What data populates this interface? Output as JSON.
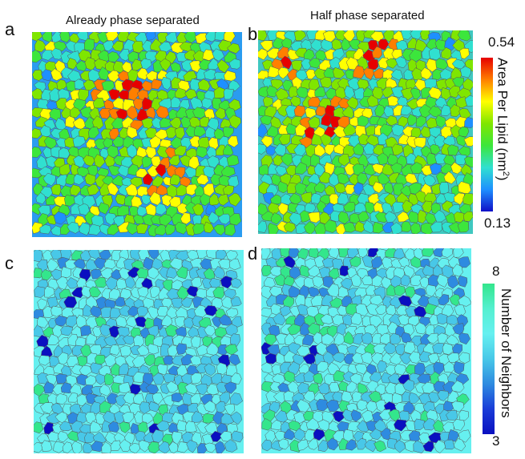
{
  "panels": [
    {
      "letter": "a",
      "title": "Already phase separated",
      "colormap": "area",
      "background": "#2a9cf0"
    },
    {
      "letter": "b",
      "title": "Half phase separated",
      "colormap": "area",
      "background": "#3fc8c0"
    },
    {
      "letter": "c",
      "title": "",
      "colormap": "neighbors",
      "background": "#66f0f0"
    },
    {
      "letter": "d",
      "title": "",
      "colormap": "neighbors",
      "background": "#66f0f0"
    }
  ],
  "colorbars": {
    "area": {
      "label_main": "Area Per Lipid (nm",
      "label_sup": "2",
      "label_end": ")",
      "max": "0.54",
      "min": "0.13",
      "gradient": [
        "#e60000",
        "#ff7f00",
        "#ffff00",
        "#7fe600",
        "#3ce63c",
        "#30e0d0",
        "#1e90ff",
        "#1010c8"
      ]
    },
    "neighbors": {
      "label": "Number of Neighbors",
      "max": "8",
      "min": "3",
      "gradient": [
        "#33e68c",
        "#55f0d0",
        "#66f0f0",
        "#48c8e8",
        "#2e8be0",
        "#1a3cd8",
        "#0a10c0"
      ]
    }
  }
}
